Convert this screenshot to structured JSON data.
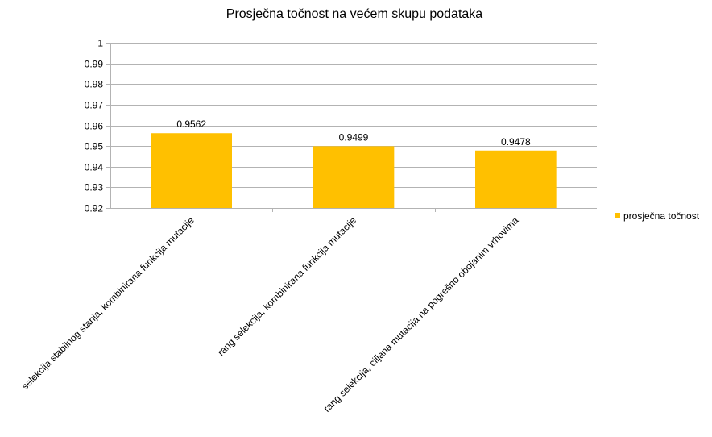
{
  "chart_data": {
    "type": "bar",
    "title": "Prosječna točnost na većem skupu podataka",
    "categories": [
      "selekcija stabilnog stanja, kombinirana funkcija mutacije",
      "rang selekcija, kombinirana funkcija mutacije",
      "rang selekcija, ciljana mutacija na pogrešno obojanim vrhovima"
    ],
    "series": [
      {
        "name": "prosječna točnost",
        "values": [
          0.9562,
          0.9499,
          0.9478
        ],
        "color": "#ffc000"
      }
    ],
    "data_labels": [
      "0.9562",
      "0.9499",
      "0.9478"
    ],
    "ylim": [
      0.92,
      1
    ],
    "yticks": [
      "0.92",
      "0.93",
      "0.94",
      "0.95",
      "0.96",
      "0.97",
      "0.98",
      "0.99",
      "1"
    ],
    "grid": true,
    "legend_position": "right",
    "gridline_color": "#b3b3b3"
  }
}
